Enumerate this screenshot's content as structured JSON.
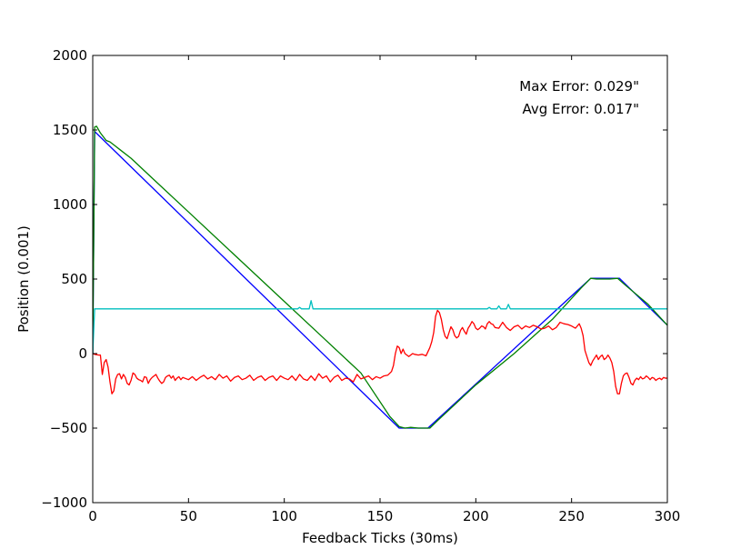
{
  "chart_data": {
    "type": "line",
    "xlabel": "Feedback Ticks (30ms)",
    "ylabel": "Position (0.001)",
    "xlim": [
      0,
      300
    ],
    "ylim": [
      -1000,
      2000
    ],
    "xticks": [
      0,
      50,
      100,
      150,
      200,
      250,
      300
    ],
    "yticks": [
      -1000,
      -500,
      0,
      500,
      1000,
      1500,
      2000
    ],
    "xtick_labels": [
      "0",
      "50",
      "100",
      "150",
      "200",
      "250",
      "300"
    ],
    "ytick_labels": [
      "−1000",
      "−500",
      "0",
      "500",
      "1000",
      "1500",
      "2000"
    ],
    "grid": false,
    "annotations": [
      "Max Error: 0.029\"",
      "Avg Error: 0.017\""
    ],
    "series": [
      {
        "color": "#0000ff",
        "points": [
          [
            0,
            0
          ],
          [
            1,
            1490
          ],
          [
            160,
            -500
          ],
          [
            175,
            -500
          ],
          [
            260,
            505
          ],
          [
            275,
            505
          ],
          [
            300,
            190
          ]
        ]
      },
      {
        "color": "#008000",
        "points": [
          [
            0,
            0
          ],
          [
            1,
            1520
          ],
          [
            2,
            1525
          ],
          [
            4,
            1480
          ],
          [
            7,
            1430
          ],
          [
            9,
            1420
          ],
          [
            14,
            1370
          ],
          [
            20,
            1310
          ],
          [
            30,
            1190
          ],
          [
            50,
            950
          ],
          [
            80,
            590
          ],
          [
            100,
            350
          ],
          [
            120,
            110
          ],
          [
            140,
            -130
          ],
          [
            155,
            -420
          ],
          [
            160,
            -490
          ],
          [
            163,
            -500
          ],
          [
            166,
            -495
          ],
          [
            170,
            -500
          ],
          [
            176,
            -500
          ],
          [
            180,
            -450
          ],
          [
            200,
            -210
          ],
          [
            220,
            0
          ],
          [
            240,
            230
          ],
          [
            255,
            440
          ],
          [
            260,
            505
          ],
          [
            263,
            500
          ],
          [
            270,
            500
          ],
          [
            274,
            505
          ],
          [
            278,
            460
          ],
          [
            290,
            330
          ],
          [
            300,
            190
          ]
        ]
      },
      {
        "color": "#00bfbf",
        "points": [
          [
            0,
            0
          ],
          [
            1,
            300
          ],
          [
            107,
            300
          ],
          [
            108,
            310
          ],
          [
            109,
            300
          ],
          [
            113,
            300
          ],
          [
            114,
            355
          ],
          [
            115,
            300
          ],
          [
            206,
            300
          ],
          [
            207,
            310
          ],
          [
            208,
            300
          ],
          [
            211,
            300
          ],
          [
            212,
            320
          ],
          [
            213,
            300
          ],
          [
            216,
            300
          ],
          [
            217,
            330
          ],
          [
            218,
            300
          ],
          [
            300,
            300
          ]
        ]
      },
      {
        "color": "#ff0000",
        "points": [
          [
            0,
            0
          ],
          [
            1,
            -5
          ],
          [
            3,
            -10
          ],
          [
            4,
            -10
          ],
          [
            5,
            -140
          ],
          [
            6,
            -60
          ],
          [
            7,
            -40
          ],
          [
            8,
            -90
          ],
          [
            9,
            -190
          ],
          [
            10,
            -270
          ],
          [
            11,
            -250
          ],
          [
            12,
            -170
          ],
          [
            13,
            -140
          ],
          [
            14,
            -135
          ],
          [
            15,
            -170
          ],
          [
            16,
            -140
          ],
          [
            17,
            -160
          ],
          [
            18,
            -200
          ],
          [
            19,
            -210
          ],
          [
            20,
            -180
          ],
          [
            21,
            -130
          ],
          [
            22,
            -140
          ],
          [
            23,
            -165
          ],
          [
            24,
            -175
          ],
          [
            25,
            -180
          ],
          [
            26,
            -190
          ],
          [
            27,
            -155
          ],
          [
            28,
            -160
          ],
          [
            29,
            -200
          ],
          [
            30,
            -175
          ],
          [
            31,
            -160
          ],
          [
            32,
            -150
          ],
          [
            33,
            -140
          ],
          [
            34,
            -165
          ],
          [
            35,
            -185
          ],
          [
            36,
            -200
          ],
          [
            37,
            -190
          ],
          [
            38,
            -160
          ],
          [
            39,
            -150
          ],
          [
            40,
            -145
          ],
          [
            41,
            -165
          ],
          [
            42,
            -150
          ],
          [
            43,
            -180
          ],
          [
            44,
            -165
          ],
          [
            45,
            -155
          ],
          [
            46,
            -175
          ],
          [
            47,
            -160
          ],
          [
            48,
            -165
          ],
          [
            50,
            -175
          ],
          [
            52,
            -155
          ],
          [
            54,
            -180
          ],
          [
            56,
            -160
          ],
          [
            58,
            -145
          ],
          [
            60,
            -170
          ],
          [
            62,
            -155
          ],
          [
            64,
            -175
          ],
          [
            66,
            -140
          ],
          [
            68,
            -165
          ],
          [
            70,
            -150
          ],
          [
            72,
            -185
          ],
          [
            74,
            -160
          ],
          [
            76,
            -150
          ],
          [
            78,
            -175
          ],
          [
            80,
            -165
          ],
          [
            82,
            -145
          ],
          [
            84,
            -180
          ],
          [
            86,
            -160
          ],
          [
            88,
            -150
          ],
          [
            90,
            -180
          ],
          [
            92,
            -160
          ],
          [
            94,
            -150
          ],
          [
            96,
            -180
          ],
          [
            98,
            -150
          ],
          [
            100,
            -165
          ],
          [
            102,
            -175
          ],
          [
            104,
            -150
          ],
          [
            106,
            -180
          ],
          [
            108,
            -140
          ],
          [
            110,
            -170
          ],
          [
            112,
            -180
          ],
          [
            114,
            -150
          ],
          [
            116,
            -180
          ],
          [
            118,
            -135
          ],
          [
            120,
            -165
          ],
          [
            122,
            -150
          ],
          [
            124,
            -190
          ],
          [
            126,
            -160
          ],
          [
            128,
            -145
          ],
          [
            130,
            -180
          ],
          [
            132,
            -165
          ],
          [
            134,
            -170
          ],
          [
            136,
            -190
          ],
          [
            138,
            -140
          ],
          [
            140,
            -170
          ],
          [
            142,
            -160
          ],
          [
            144,
            -150
          ],
          [
            146,
            -175
          ],
          [
            148,
            -155
          ],
          [
            150,
            -165
          ],
          [
            152,
            -150
          ],
          [
            154,
            -145
          ],
          [
            156,
            -120
          ],
          [
            157,
            -80
          ],
          [
            158,
            0
          ],
          [
            159,
            50
          ],
          [
            160,
            40
          ],
          [
            161,
            0
          ],
          [
            162,
            30
          ],
          [
            163,
            0
          ],
          [
            164,
            -10
          ],
          [
            165,
            -20
          ],
          [
            166,
            -10
          ],
          [
            167,
            0
          ],
          [
            168,
            -5
          ],
          [
            170,
            -10
          ],
          [
            172,
            -5
          ],
          [
            174,
            -15
          ],
          [
            176,
            40
          ],
          [
            177,
            80
          ],
          [
            178,
            140
          ],
          [
            179,
            250
          ],
          [
            180,
            290
          ],
          [
            181,
            275
          ],
          [
            182,
            230
          ],
          [
            183,
            160
          ],
          [
            184,
            115
          ],
          [
            185,
            100
          ],
          [
            186,
            140
          ],
          [
            187,
            180
          ],
          [
            188,
            160
          ],
          [
            189,
            120
          ],
          [
            190,
            105
          ],
          [
            191,
            115
          ],
          [
            192,
            155
          ],
          [
            193,
            175
          ],
          [
            194,
            150
          ],
          [
            195,
            130
          ],
          [
            196,
            170
          ],
          [
            197,
            190
          ],
          [
            198,
            215
          ],
          [
            199,
            200
          ],
          [
            200,
            170
          ],
          [
            201,
            160
          ],
          [
            202,
            170
          ],
          [
            203,
            185
          ],
          [
            204,
            180
          ],
          [
            205,
            165
          ],
          [
            206,
            200
          ],
          [
            207,
            215
          ],
          [
            208,
            200
          ],
          [
            209,
            195
          ],
          [
            210,
            175
          ],
          [
            212,
            170
          ],
          [
            214,
            210
          ],
          [
            216,
            175
          ],
          [
            218,
            155
          ],
          [
            220,
            180
          ],
          [
            222,
            190
          ],
          [
            224,
            165
          ],
          [
            226,
            185
          ],
          [
            228,
            175
          ],
          [
            230,
            190
          ],
          [
            232,
            180
          ],
          [
            234,
            165
          ],
          [
            236,
            170
          ],
          [
            238,
            185
          ],
          [
            240,
            160
          ],
          [
            242,
            175
          ],
          [
            244,
            210
          ],
          [
            246,
            200
          ],
          [
            248,
            195
          ],
          [
            250,
            185
          ],
          [
            252,
            170
          ],
          [
            254,
            200
          ],
          [
            255,
            170
          ],
          [
            256,
            120
          ],
          [
            257,
            20
          ],
          [
            258,
            -20
          ],
          [
            259,
            -60
          ],
          [
            260,
            -80
          ],
          [
            261,
            -50
          ],
          [
            262,
            -30
          ],
          [
            263,
            -10
          ],
          [
            264,
            -40
          ],
          [
            265,
            -20
          ],
          [
            266,
            -10
          ],
          [
            267,
            -40
          ],
          [
            268,
            -30
          ],
          [
            269,
            -10
          ],
          [
            270,
            -30
          ],
          [
            271,
            -60
          ],
          [
            272,
            -120
          ],
          [
            273,
            -220
          ],
          [
            274,
            -270
          ],
          [
            275,
            -270
          ],
          [
            276,
            -200
          ],
          [
            277,
            -150
          ],
          [
            278,
            -135
          ],
          [
            279,
            -130
          ],
          [
            280,
            -160
          ],
          [
            281,
            -200
          ],
          [
            282,
            -210
          ],
          [
            283,
            -180
          ],
          [
            284,
            -165
          ],
          [
            285,
            -175
          ],
          [
            286,
            -155
          ],
          [
            287,
            -170
          ],
          [
            288,
            -165
          ],
          [
            289,
            -150
          ],
          [
            290,
            -160
          ],
          [
            291,
            -175
          ],
          [
            292,
            -160
          ],
          [
            293,
            -165
          ],
          [
            294,
            -180
          ],
          [
            295,
            -170
          ],
          [
            296,
            -165
          ],
          [
            297,
            -175
          ],
          [
            298,
            -160
          ],
          [
            299,
            -165
          ],
          [
            300,
            -165
          ]
        ]
      }
    ]
  }
}
